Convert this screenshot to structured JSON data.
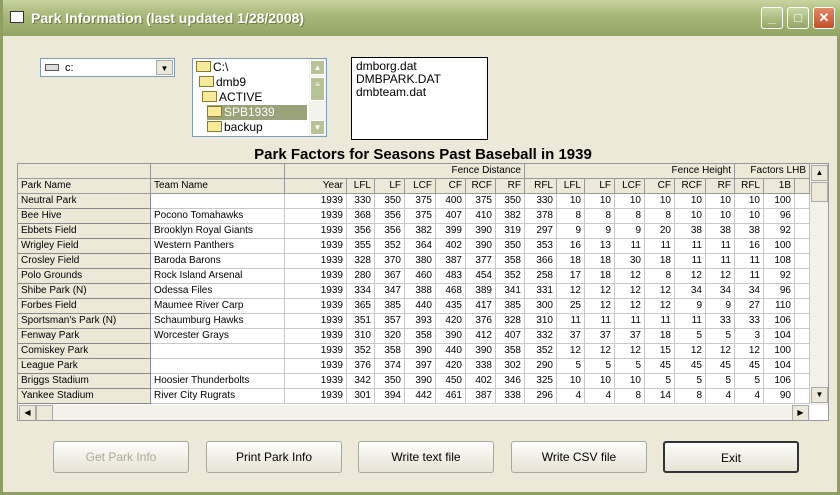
{
  "window": {
    "title": "Park Information (last updated 1/28/2008)"
  },
  "drive": {
    "value": "c:"
  },
  "directories": [
    "C:\\",
    "dmb9",
    "ACTIVE",
    "SPB1939",
    "backup"
  ],
  "selected_directory": "SPB1939",
  "files": [
    "dmborg.dat",
    "DMBPARK.DAT",
    "dmbteam.dat"
  ],
  "caption": "Park Factors for Seasons Past Baseball in 1939",
  "groups": [
    "Fence Distance",
    "Fence Height",
    "Factors LHB"
  ],
  "columns": [
    "Park Name",
    "Team Name",
    "Year",
    "LFL",
    "LF",
    "LCF",
    "CF",
    "RCF",
    "RF",
    "RFL",
    "LFL",
    "LF",
    "LCF",
    "CF",
    "RCF",
    "RF",
    "RFL",
    "1B"
  ],
  "rows": [
    [
      "Neutral Park",
      "",
      "1939",
      "330",
      "350",
      "375",
      "400",
      "375",
      "350",
      "330",
      "10",
      "10",
      "10",
      "10",
      "10",
      "10",
      "10",
      "100"
    ],
    [
      "Bee Hive",
      "Pocono Tomahawks",
      "1939",
      "368",
      "356",
      "375",
      "407",
      "410",
      "382",
      "378",
      "8",
      "8",
      "8",
      "8",
      "10",
      "10",
      "10",
      "96"
    ],
    [
      "Ebbets Field",
      "Brooklyn Royal Giants",
      "1939",
      "356",
      "356",
      "382",
      "399",
      "390",
      "319",
      "297",
      "9",
      "9",
      "9",
      "20",
      "38",
      "38",
      "38",
      "92"
    ],
    [
      "Wrigley Field",
      "Western Panthers",
      "1939",
      "355",
      "352",
      "364",
      "402",
      "390",
      "350",
      "353",
      "16",
      "13",
      "11",
      "11",
      "11",
      "11",
      "16",
      "100"
    ],
    [
      "Crosley Field",
      "Baroda Barons",
      "1939",
      "328",
      "370",
      "380",
      "387",
      "377",
      "358",
      "366",
      "18",
      "18",
      "30",
      "18",
      "11",
      "11",
      "11",
      "108"
    ],
    [
      "Polo Grounds",
      "Rock Island Arsenal",
      "1939",
      "280",
      "367",
      "460",
      "483",
      "454",
      "352",
      "258",
      "17",
      "18",
      "12",
      "8",
      "12",
      "12",
      "11",
      "92"
    ],
    [
      "Shibe Park (N)",
      "Odessa Files",
      "1939",
      "334",
      "347",
      "388",
      "468",
      "389",
      "341",
      "331",
      "12",
      "12",
      "12",
      "12",
      "34",
      "34",
      "34",
      "96"
    ],
    [
      "Forbes Field",
      "Maumee River Carp",
      "1939",
      "365",
      "385",
      "440",
      "435",
      "417",
      "385",
      "300",
      "25",
      "12",
      "12",
      "12",
      "9",
      "9",
      "27",
      "110"
    ],
    [
      "Sportsman's Park (N)",
      "Schaumburg Hawks",
      "1939",
      "351",
      "357",
      "393",
      "420",
      "376",
      "328",
      "310",
      "11",
      "11",
      "11",
      "11",
      "11",
      "33",
      "33",
      "106"
    ],
    [
      "Fenway Park",
      "Worcester Grays",
      "1939",
      "310",
      "320",
      "358",
      "390",
      "412",
      "407",
      "332",
      "37",
      "37",
      "37",
      "18",
      "5",
      "5",
      "3",
      "104"
    ],
    [
      "Comiskey Park",
      "",
      "1939",
      "352",
      "358",
      "390",
      "440",
      "390",
      "358",
      "352",
      "12",
      "12",
      "12",
      "15",
      "12",
      "12",
      "12",
      "100"
    ],
    [
      "League Park",
      "",
      "1939",
      "376",
      "374",
      "397",
      "420",
      "338",
      "302",
      "290",
      "5",
      "5",
      "5",
      "45",
      "45",
      "45",
      "45",
      "104"
    ],
    [
      "Briggs Stadium",
      "Hoosier Thunderbolts",
      "1939",
      "342",
      "350",
      "390",
      "450",
      "402",
      "346",
      "325",
      "10",
      "10",
      "10",
      "5",
      "5",
      "5",
      "5",
      "106"
    ],
    [
      "Yankee Stadium",
      "River City Rugrats",
      "1939",
      "301",
      "394",
      "442",
      "461",
      "387",
      "338",
      "296",
      "4",
      "4",
      "8",
      "14",
      "8",
      "4",
      "4",
      "90"
    ]
  ],
  "buttons": {
    "get": "Get Park Info",
    "print": "Print Park Info",
    "text": "Write text file",
    "csv": "Write CSV file",
    "exit": "Exit"
  },
  "colors": {
    "titlebar": "#93a564",
    "selection": "#9aa27a"
  }
}
